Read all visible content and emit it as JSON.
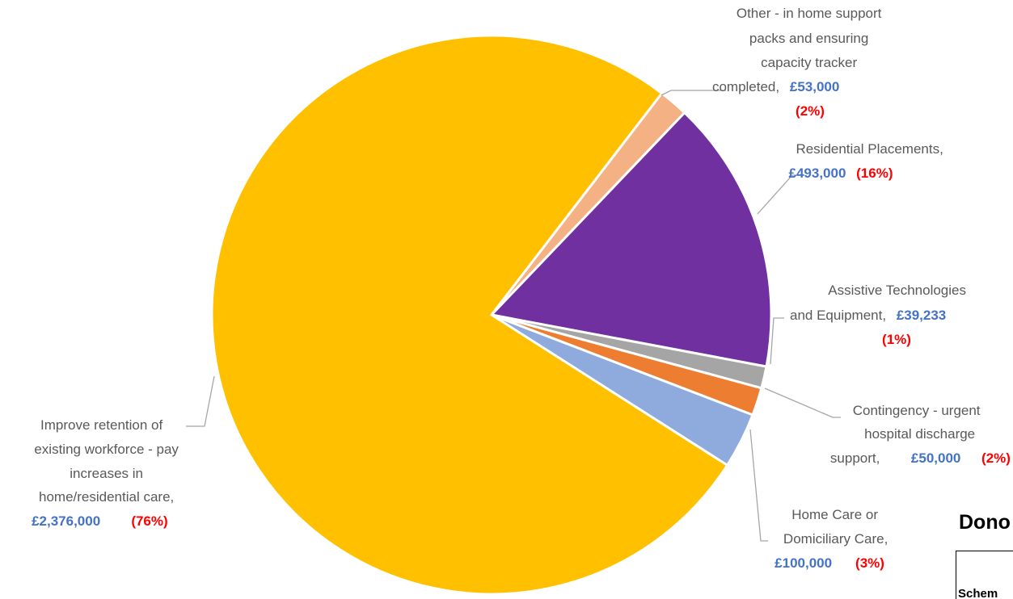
{
  "chart_data": {
    "type": "pie",
    "title": "",
    "slices": [
      {
        "label": [
          "Other - in home support",
          "packs and ensuring",
          "capacity tracker",
          "completed,"
        ],
        "amount": "£53,000",
        "percent": "(2%)",
        "value": 53000,
        "color": "#F4B183"
      },
      {
        "label": [
          "Residential Placements,"
        ],
        "amount": "£493,000",
        "percent": "(16%)",
        "value": 493000,
        "color": "#7030A0"
      },
      {
        "label": [
          "Assistive Technologies",
          "and Equipment,"
        ],
        "amount": "£39,233",
        "percent": "(1%)",
        "value": 39233,
        "color": "#A5A5A5"
      },
      {
        "label": [
          "Contingency - urgent",
          "hospital discharge",
          "support,"
        ],
        "amount": "£50,000",
        "percent": "(2%)",
        "value": 50000,
        "color": "#ED7D31"
      },
      {
        "label": [
          "Home Care or",
          "Domiciliary Care,"
        ],
        "amount": "£100,000",
        "percent": "(3%)",
        "value": 100000,
        "color": "#8FAADC"
      },
      {
        "label": [
          "Improve retention of",
          "existing workforce - pay",
          "increases in",
          "home/residential care,"
        ],
        "amount": "£2,376,000",
        "percent": "(76%)",
        "value": 2376000,
        "color": "#FFC000"
      }
    ]
  },
  "side_panel": {
    "title": "Dono",
    "table_header": "Schem"
  }
}
